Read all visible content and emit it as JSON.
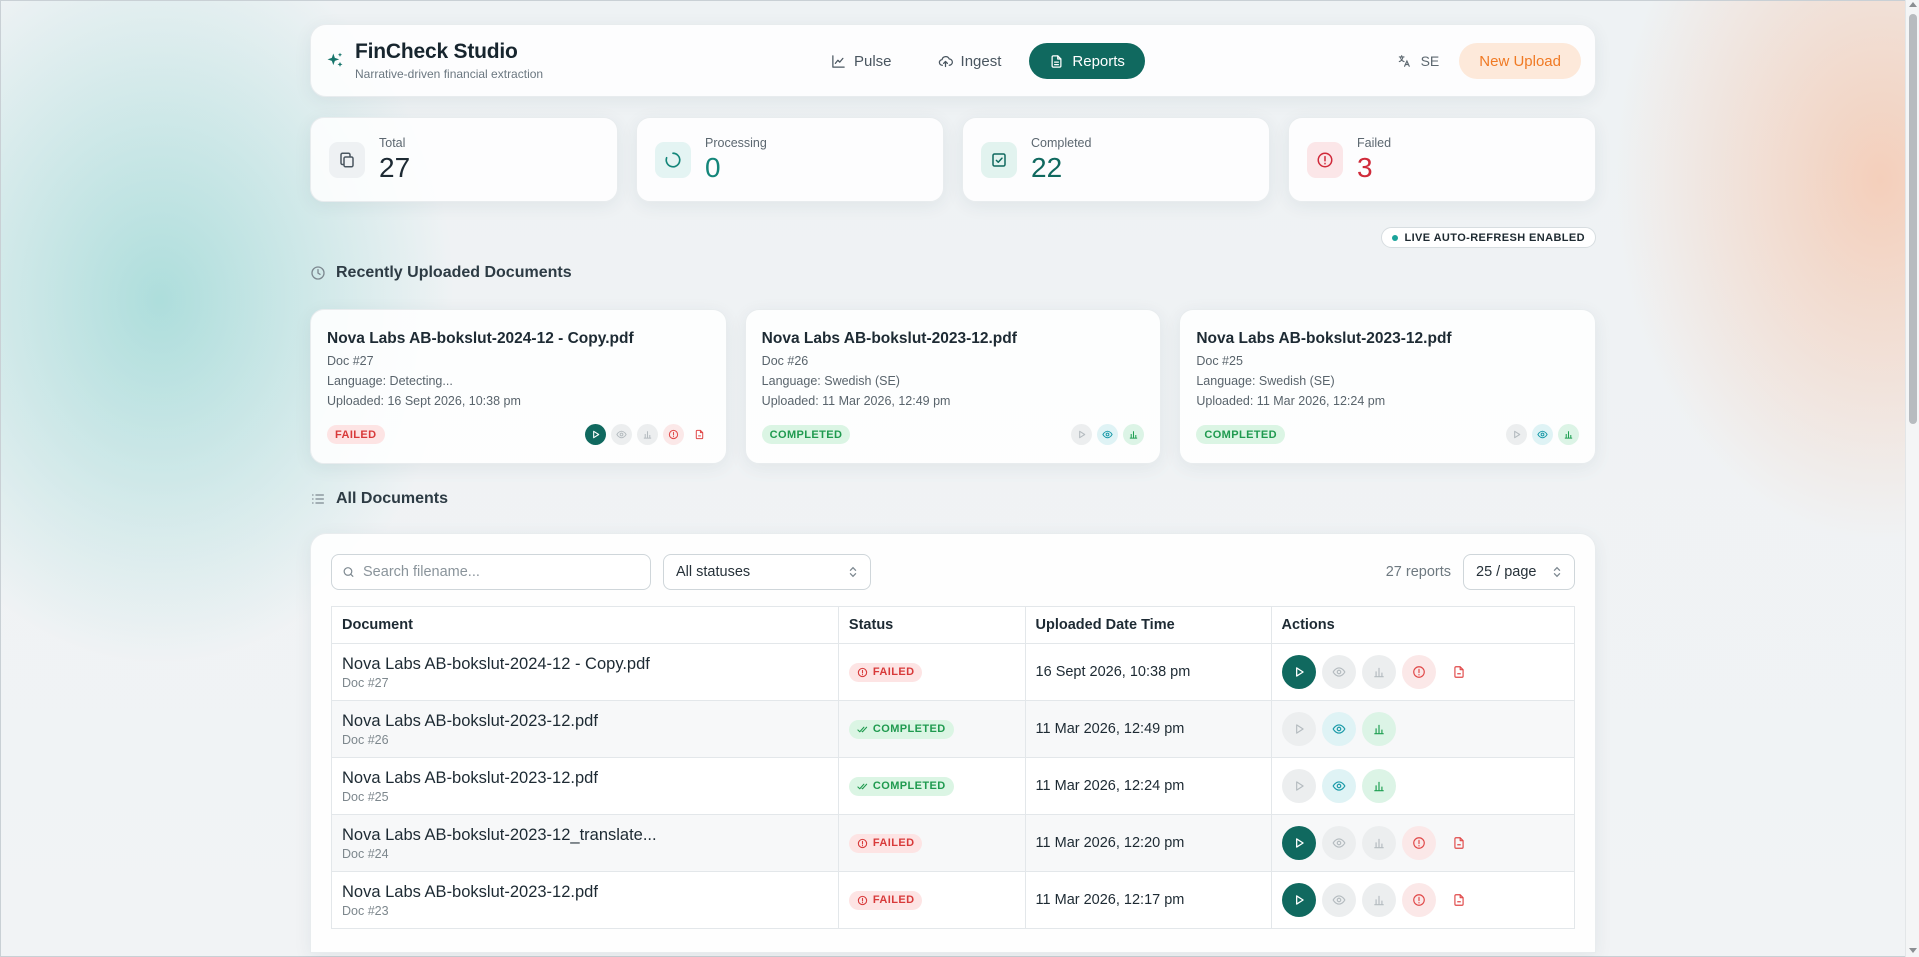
{
  "header": {
    "title": "FinCheck Studio",
    "subtitle": "Narrative-driven financial extraction",
    "nav": [
      {
        "label": "Pulse",
        "icon": "chart-icon",
        "active": false
      },
      {
        "label": "Ingest",
        "icon": "cloud-upload-icon",
        "active": false
      },
      {
        "label": "Reports",
        "icon": "document-icon",
        "active": true
      }
    ],
    "language": "SE",
    "new_upload_label": "New Upload"
  },
  "stats": [
    {
      "label": "Total",
      "value": "27",
      "icon": "copy-icon",
      "color": "#1d2a33"
    },
    {
      "label": "Processing",
      "value": "0",
      "icon": "spinner-icon",
      "color": "#14867a"
    },
    {
      "label": "Completed",
      "value": "22",
      "icon": "check-square-icon",
      "color": "#10695f"
    },
    {
      "label": "Failed",
      "value": "3",
      "icon": "alert-circle-icon",
      "color": "#d02a3a"
    }
  ],
  "live_badge": "LIVE AUTO-REFRESH ENABLED",
  "recent": {
    "title": "Recently Uploaded Documents",
    "cards": [
      {
        "title": "Nova Labs AB-bokslut-2024-12 - Copy.pdf",
        "doc": "Doc #27",
        "language": "Language: Detecting...",
        "uploaded": "Uploaded: 16 Sept 2026, 10:38 pm",
        "status": "FAILED"
      },
      {
        "title": "Nova Labs AB-bokslut-2023-12.pdf",
        "doc": "Doc #26",
        "language": "Language: Swedish (SE)",
        "uploaded": "Uploaded: 11 Mar 2026, 12:49 pm",
        "status": "COMPLETED"
      },
      {
        "title": "Nova Labs AB-bokslut-2023-12.pdf",
        "doc": "Doc #25",
        "language": "Language: Swedish (SE)",
        "uploaded": "Uploaded: 11 Mar 2026, 12:24 pm",
        "status": "COMPLETED"
      }
    ]
  },
  "all": {
    "title": "All Documents",
    "search_placeholder": "Search filename...",
    "status_filter": "All statuses",
    "report_count": "27 reports",
    "page_size": "25 / page",
    "columns": [
      "Document",
      "Status",
      "Uploaded Date Time",
      "Actions"
    ],
    "rows": [
      {
        "name": "Nova Labs AB-bokslut-2024-12 - Copy.pdf",
        "doc": "Doc #27",
        "status": "FAILED",
        "uploaded": "16 Sept 2026, 10:38 pm"
      },
      {
        "name": "Nova Labs AB-bokslut-2023-12.pdf",
        "doc": "Doc #26",
        "status": "COMPLETED",
        "uploaded": "11 Mar 2026, 12:49 pm"
      },
      {
        "name": "Nova Labs AB-bokslut-2023-12.pdf",
        "doc": "Doc #25",
        "status": "COMPLETED",
        "uploaded": "11 Mar 2026, 12:24 pm"
      },
      {
        "name": "Nova Labs AB-bokslut-2023-12_translate...",
        "doc": "Doc #24",
        "status": "FAILED",
        "uploaded": "11 Mar 2026, 12:20 pm"
      },
      {
        "name": "Nova Labs AB-bokslut-2023-12.pdf",
        "doc": "Doc #23",
        "status": "FAILED",
        "uploaded": "11 Mar 2026, 12:17 pm"
      }
    ]
  }
}
